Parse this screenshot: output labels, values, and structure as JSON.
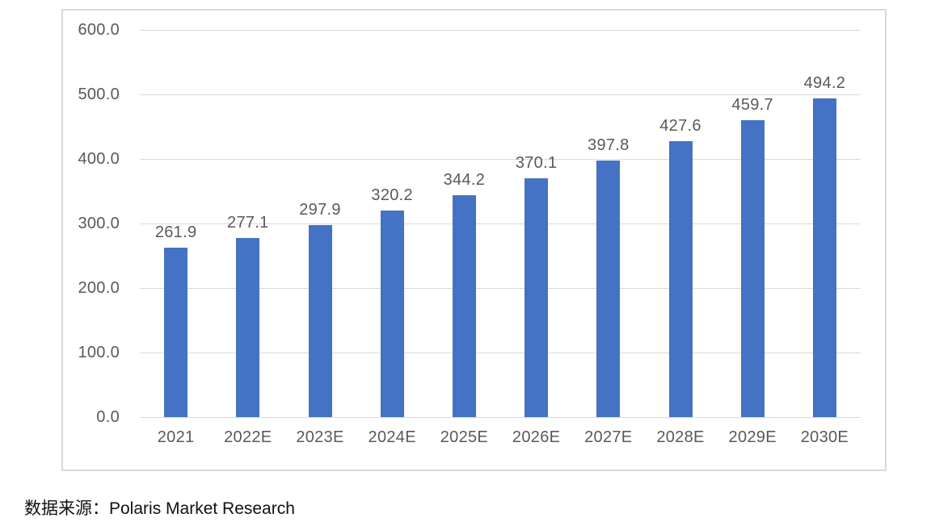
{
  "chart_data": {
    "type": "bar",
    "categories": [
      "2021",
      "2022E",
      "2023E",
      "2024E",
      "2025E",
      "2026E",
      "2027E",
      "2028E",
      "2029E",
      "2030E"
    ],
    "values": [
      261.9,
      277.1,
      297.9,
      320.2,
      344.2,
      370.1,
      397.8,
      427.6,
      459.7,
      494.2
    ],
    "data_labels": [
      "261.9",
      "277.1",
      "297.9",
      "320.2",
      "344.2",
      "370.1",
      "397.8",
      "427.6",
      "459.7",
      "494.2"
    ],
    "ylim": [
      0,
      600
    ],
    "yticks": [
      0,
      100,
      200,
      300,
      400,
      500,
      600
    ],
    "ytick_labels": [
      "0.0",
      "100.0",
      "200.0",
      "300.0",
      "400.0",
      "500.0",
      "600.0"
    ],
    "grid": true,
    "legend": "none",
    "bar_color": "#4472c4",
    "axis_label_color": "#595959",
    "data_label_color": "#595959",
    "gridline_color": "#d9d9d9",
    "frame_border_color": "#d9d9d9"
  },
  "source": {
    "text": "数据来源：Polaris Market Research"
  }
}
